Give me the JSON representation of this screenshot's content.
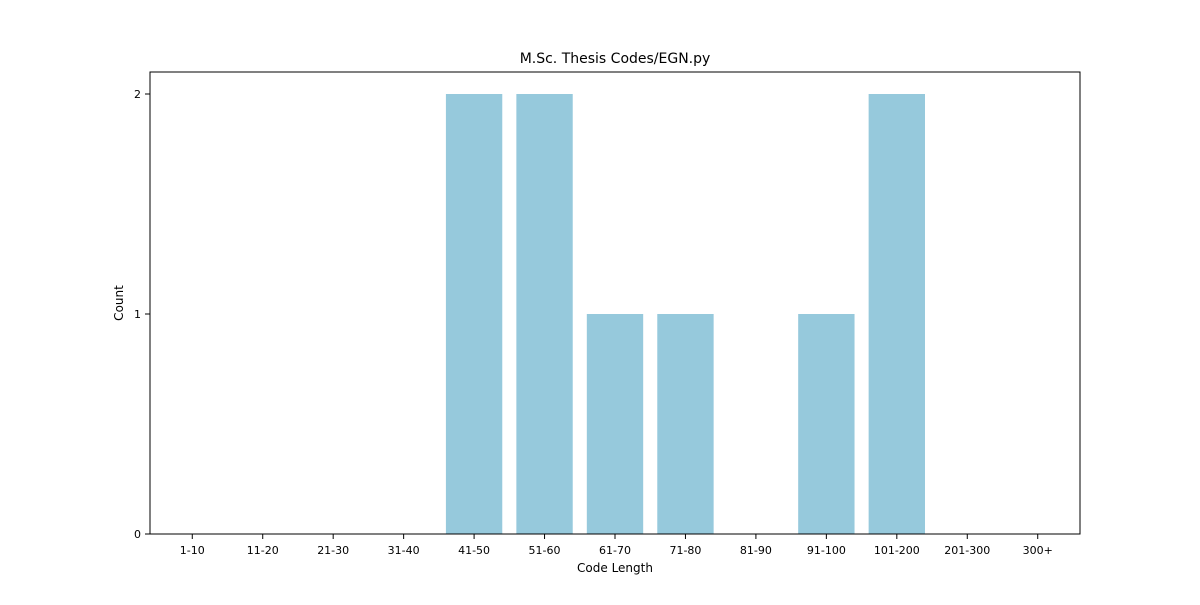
{
  "chart_data": {
    "type": "bar",
    "title": "M.Sc. Thesis Codes/EGN.py",
    "xlabel": "Code Length",
    "ylabel": "Count",
    "categories": [
      "1-10",
      "11-20",
      "21-30",
      "31-40",
      "41-50",
      "51-60",
      "61-70",
      "71-80",
      "81-90",
      "91-100",
      "101-200",
      "201-300",
      "300+"
    ],
    "values": [
      0,
      0,
      0,
      0,
      2,
      2,
      1,
      1,
      0,
      1,
      2,
      0,
      0
    ],
    "ylim": [
      0,
      2.1
    ],
    "yticks": [
      "0",
      "1",
      "2"
    ],
    "grid": false,
    "legend": "none",
    "bar_color": "#96c9dc"
  }
}
